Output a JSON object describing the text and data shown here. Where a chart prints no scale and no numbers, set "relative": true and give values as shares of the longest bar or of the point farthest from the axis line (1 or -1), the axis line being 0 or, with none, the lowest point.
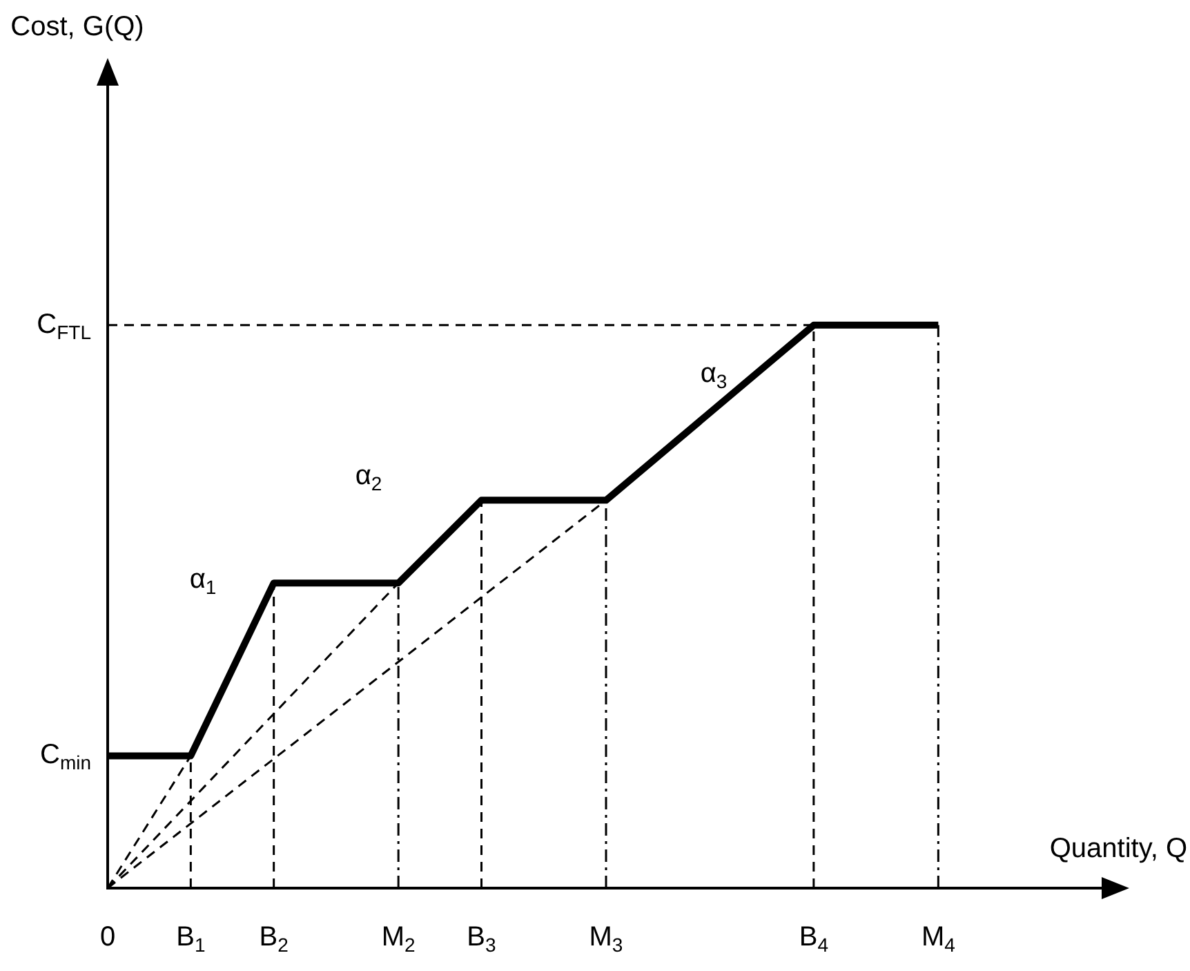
{
  "chart_data": {
    "type": "line",
    "relative": true,
    "xlabel": "Quantity, Q",
    "categories": [
      "0",
      null,
      "B$_{1}$",
      null,
      "B$_{2}$",
      null,
      null,
      "M$_{2}$",
      null,
      "B$_{3}$",
      null,
      null,
      "M$_{3}$",
      null,
      null,
      null,
      null,
      "B$_{4}$",
      null,
      null,
      "M$_{4}$",
      null,
      null,
      null,
      null
    ],
    "grid": false,
    "legend": false,
    "marker": "none",
    "series": [
      {
        "color": "#000000",
        "line_style": "solid",
        "x": [
          "0",
          "B$_{1}$",
          "B$_{2}$",
          "M$_{2}$",
          "B$_{3}$",
          "M$_{3}$",
          "B$_{4}$",
          "M$_{4}$"
        ],
        "values": [
          0.235,
          0.235,
          0.542,
          0.542,
          0.689,
          0.689,
          1,
          1
        ]
      },
      {
        "color": "#000000",
        "line_style": "dashed",
        "x": [
          "0",
          "B$_{4}$"
        ],
        "values": [
          1,
          1
        ]
      },
      {
        "color": "#000000",
        "line_style": "dashed",
        "x": [
          "0",
          "B$_{1}$"
        ],
        "values": [
          0,
          0.235
        ]
      },
      {
        "color": "#000000",
        "line_style": "dashed",
        "x": [
          "0",
          "M$_{2}$"
        ],
        "values": [
          0,
          0.542
        ]
      },
      {
        "color": "#000000",
        "line_style": "dashed",
        "x": [
          "0",
          "M$_{3}$"
        ],
        "values": [
          0,
          0.689
        ]
      },
      {
        "color": "#000000",
        "line_style": "dashed",
        "x": [
          "B$_{1}$",
          "B$_{1}$"
        ],
        "values": [
          0,
          0.235
        ]
      },
      {
        "color": "#000000",
        "line_style": "dashed",
        "x": [
          "B$_{2}$",
          "B$_{2}$"
        ],
        "values": [
          0,
          0.542
        ]
      },
      {
        "color": "#000000",
        "line_style": "dashdot",
        "x": [
          "M$_{2}$",
          "M$_{2}$"
        ],
        "values": [
          0,
          0.542
        ]
      },
      {
        "color": "#000000",
        "line_style": "dashed",
        "x": [
          "B$_{3}$",
          "B$_{3}$"
        ],
        "values": [
          0,
          0.689
        ]
      },
      {
        "color": "#000000",
        "line_style": "dashdot",
        "x": [
          "M$_{3}$",
          "M$_{3}$"
        ],
        "values": [
          0,
          0.689
        ]
      },
      {
        "color": "#000000",
        "line_style": "dashed",
        "x": [
          "B$_{4}$",
          "B$_{4}$"
        ],
        "values": [
          0,
          1
        ]
      },
      {
        "color": "#000000",
        "line_style": "dashdot",
        "x": [
          "M$_{4}$",
          "M$_{4}$"
        ],
        "values": [
          0,
          1
        ]
      }
    ],
    "annotations": [
      {
        "text": "C$_{min}$",
        "x": "0",
        "y": 0.235
      },
      {
        "text": "C$_{FTL}$",
        "x": "0",
        "y": 1
      },
      "α$_{1}$",
      "α$_{2}$",
      "α$_{3}$",
      "Cost, G(Q)"
    ]
  }
}
